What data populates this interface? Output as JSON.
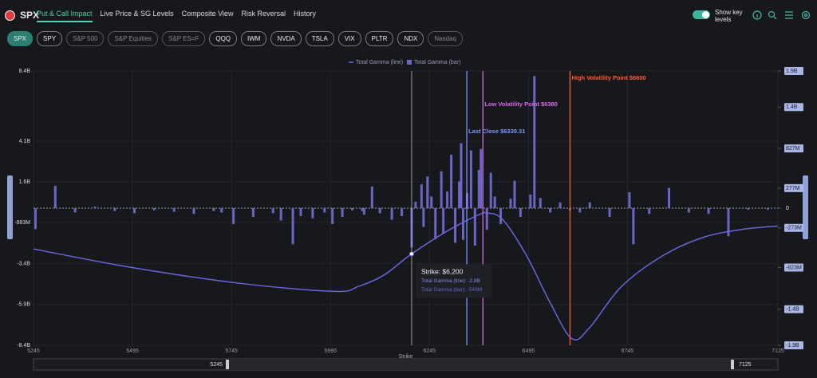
{
  "header": {
    "logo": "SPX",
    "tabs": [
      "Put & Call Impact",
      "Live Price & SG Levels",
      "Composite View",
      "Risk Reversal",
      "History"
    ],
    "toggle_label": "Show key levels"
  },
  "tickers": [
    "SPX",
    "SPY",
    "S&P 500",
    "S&P Equities",
    "S&P ES=F",
    "QQQ",
    "IWM",
    "NVDA",
    "TSLA",
    "VIX",
    "PLTR",
    "NDX",
    "Nasdaq"
  ],
  "chart_data": {
    "type": "combo",
    "x_label": "Strike",
    "xlim": [
      5245,
      7125
    ],
    "xticks": [
      5245,
      5495,
      5745,
      5995,
      6245,
      6495,
      6745,
      7125
    ],
    "ylim": [
      -8.4,
      8.4
    ],
    "yticks": [
      {
        "value": 8.4,
        "label": "8.4B"
      },
      {
        "value": 4.1,
        "label": "4.1B"
      },
      {
        "value": 1.6,
        "label": "1.6B"
      },
      {
        "value": -0.883,
        "label": "-883M"
      },
      {
        "value": -3.4,
        "label": "-3.4B"
      },
      {
        "value": -5.9,
        "label": "-5.9B"
      },
      {
        "value": -8.4,
        "label": "-8.4B"
      }
    ],
    "y2lim": [
      -1900,
      1900
    ],
    "y2ticks": [
      {
        "value": 1900,
        "label": "1.9B"
      },
      {
        "value": 1400,
        "label": "1.4B"
      },
      {
        "value": 827,
        "label": "827M"
      },
      {
        "value": 277,
        "label": "277M"
      },
      0,
      {
        "value": -273,
        "label": "-273M"
      },
      {
        "value": -823,
        "label": "-823M"
      },
      {
        "value": -1400,
        "label": "-1.4B"
      },
      {
        "value": -1900,
        "label": "-1.9B"
      }
    ],
    "series": [
      {
        "name": "Total Gamma (line)",
        "type": "line",
        "color": "#6b63db",
        "x": [
          5245,
          5485,
          5765,
          6005,
          6065,
          6130,
          6200,
          6290,
          6370,
          6390,
          6430,
          6490,
          6550,
          6605,
          6650,
          6730,
          6835,
          6935,
          7035,
          7125
        ],
        "values": [
          -2.5,
          -3.6,
          -4.6,
          -5.1,
          -4.8,
          -4.1,
          -2.8,
          -1.4,
          -0.4,
          -0.3,
          -0.7,
          -2.9,
          -5.8,
          -8.0,
          -7.3,
          -4.8,
          -2.9,
          -1.8,
          -1.3,
          -1.1
        ]
      },
      {
        "name": "Total Gamma (bar)",
        "type": "bar",
        "axis": "y2",
        "color": "#6a66c4",
        "x": [
          5250,
          5300,
          5350,
          5400,
          5450,
          5500,
          5550,
          5600,
          5650,
          5700,
          5720,
          5750,
          5800,
          5850,
          5870,
          5900,
          5920,
          5950,
          5980,
          6000,
          6025,
          6050,
          6075,
          6080,
          6100,
          6120,
          6150,
          6175,
          6200,
          6210,
          6225,
          6230,
          6240,
          6250,
          6260,
          6275,
          6280,
          6290,
          6300,
          6310,
          6320,
          6325,
          6330,
          6340,
          6350,
          6360,
          6370,
          6375,
          6390,
          6400,
          6410,
          6425,
          6450,
          6460,
          6475,
          6500,
          6510,
          6525,
          6550,
          6575,
          6600,
          6625,
          6650,
          6700,
          6750,
          6760,
          6800,
          6850,
          6900,
          6950,
          7000,
          7050,
          7100
        ],
        "values": [
          -290,
          310,
          -60,
          20,
          -40,
          -70,
          -30,
          -50,
          -80,
          -40,
          -60,
          -220,
          -120,
          -70,
          -170,
          -500,
          -110,
          -140,
          -60,
          -220,
          -120,
          -30,
          -40,
          -90,
          300,
          -70,
          -160,
          -110,
          -543,
          90,
          330,
          -260,
          440,
          160,
          -430,
          510,
          -350,
          230,
          740,
          -480,
          370,
          900,
          -440,
          210,
          800,
          -520,
          530,
          820,
          -300,
          490,
          160,
          -220,
          130,
          380,
          -120,
          190,
          1830,
          140,
          -60,
          80,
          -30,
          -60,
          80,
          -120,
          220,
          -500,
          -80,
          280,
          -60,
          -80,
          -390,
          -20,
          -20
        ]
      }
    ],
    "key_levels": [
      {
        "label": "Last Close $6339.31",
        "value": 6339.31,
        "color": "#7f93ff"
      },
      {
        "label": "Low Volatility Point $6380",
        "value": 6380,
        "color": "#d46ae6"
      },
      {
        "label": "High Volatility Point $6600",
        "value": 6600,
        "color": "#ff5b36"
      }
    ],
    "tooltip": {
      "x": {
        "value": 6200,
        "label": "Strike: $6,200"
      },
      "items": [
        {
          "value": -2.8,
          "label": "Total Gamma (line): -2.8B"
        },
        {
          "value": -543,
          "label": "Total Gamma (bar): -543M"
        }
      ]
    },
    "range_slider": [
      5245,
      7125
    ]
  }
}
